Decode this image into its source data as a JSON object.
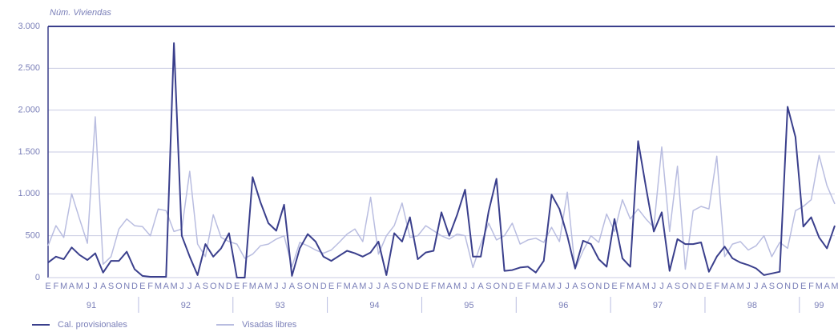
{
  "chart_data": {
    "type": "line",
    "y_label": "Núm. Viviendas",
    "categories": [
      "E",
      "F",
      "M",
      "A",
      "M",
      "J",
      "J",
      "A",
      "S",
      "O",
      "N",
      "D",
      "E",
      "F",
      "M",
      "A",
      "M",
      "J",
      "J",
      "A",
      "S",
      "O",
      "N",
      "D",
      "E",
      "F",
      "M",
      "A",
      "M",
      "J",
      "J",
      "A",
      "S",
      "O",
      "N",
      "D",
      "E",
      "F",
      "M",
      "A",
      "M",
      "J",
      "J",
      "A",
      "S",
      "O",
      "N",
      "D",
      "E",
      "F",
      "M",
      "A",
      "M",
      "J",
      "J",
      "A",
      "S",
      "O",
      "N",
      "D",
      "E",
      "F",
      "M",
      "A",
      "M",
      "J",
      "J",
      "A",
      "S",
      "O",
      "N",
      "D",
      "E",
      "F",
      "M",
      "A",
      "M",
      "J",
      "J",
      "A",
      "S",
      "O",
      "N",
      "D",
      "E",
      "F",
      "M",
      "A",
      "M",
      "J",
      "J",
      "A",
      "S",
      "O",
      "N",
      "D",
      "E",
      "F",
      "M",
      "A",
      "M"
    ],
    "years": [
      "91",
      "92",
      "93",
      "94",
      "95",
      "96",
      "97",
      "98",
      "99"
    ],
    "series": [
      {
        "name": "Cal. provisionales",
        "color": "#3a3f8c",
        "values": [
          180,
          250,
          220,
          360,
          270,
          210,
          290,
          60,
          200,
          200,
          310,
          100,
          20,
          10,
          10,
          10,
          2800,
          500,
          250,
          30,
          400,
          250,
          350,
          530,
          0,
          0,
          1200,
          900,
          650,
          560,
          870,
          20,
          350,
          520,
          430,
          250,
          200,
          260,
          320,
          290,
          250,
          300,
          430,
          30,
          530,
          430,
          720,
          220,
          300,
          320,
          780,
          500,
          750,
          1050,
          250,
          250,
          790,
          1180,
          80,
          90,
          120,
          130,
          60,
          200,
          990,
          820,
          500,
          110,
          440,
          400,
          220,
          130,
          700,
          230,
          130,
          1630,
          1080,
          550,
          780,
          80,
          460,
          400,
          400,
          420,
          70,
          250,
          370,
          230,
          180,
          150,
          110,
          30,
          50,
          70,
          2040,
          1680,
          610,
          720,
          480,
          350,
          620
        ]
      },
      {
        "name": "Visadas libres",
        "color": "#b9bde0",
        "values": [
          380,
          620,
          480,
          1000,
          700,
          410,
          1920,
          160,
          250,
          580,
          700,
          620,
          610,
          500,
          820,
          800,
          550,
          580,
          1270,
          400,
          250,
          750,
          480,
          430,
          400,
          230,
          280,
          380,
          400,
          460,
          500,
          130,
          420,
          380,
          330,
          290,
          330,
          420,
          520,
          580,
          430,
          960,
          280,
          500,
          620,
          890,
          480,
          500,
          620,
          560,
          500,
          460,
          520,
          500,
          120,
          400,
          650,
          450,
          500,
          650,
          400,
          450,
          470,
          420,
          600,
          430,
          1020,
          100,
          320,
          500,
          420,
          760,
          550,
          930,
          700,
          820,
          700,
          600,
          1560,
          550,
          1330,
          100,
          800,
          850,
          820,
          1450,
          250,
          400,
          430,
          330,
          380,
          500,
          250,
          420,
          350,
          800,
          850,
          930,
          1460,
          1100,
          880
        ]
      }
    ],
    "ylim": [
      0,
      3000
    ],
    "yticks": [
      0,
      {
        "value": 500,
        "label": "500"
      },
      {
        "value": 1000,
        "label": "1.000"
      },
      {
        "value": 1500,
        "label": "1.500"
      },
      {
        "value": 2000,
        "label": "2.000"
      },
      {
        "value": 2500,
        "label": "2.500"
      },
      {
        "value": 3000,
        "label": "3.000"
      }
    ],
    "grid": true
  }
}
